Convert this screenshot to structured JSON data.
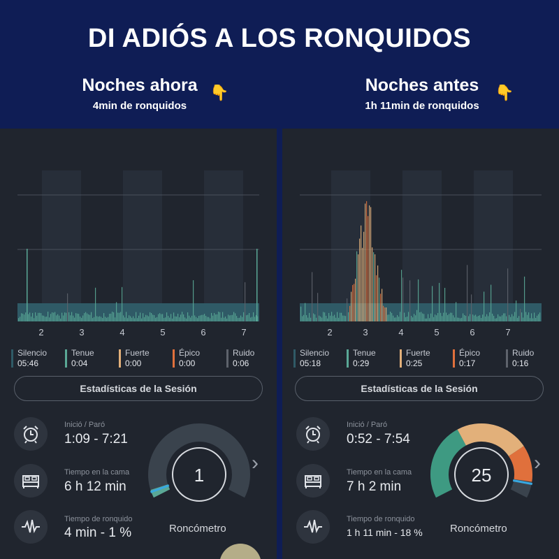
{
  "header": {
    "title": "DI ADIÓS A LOS RONQUIDOS",
    "left_heading": "Noches ahora",
    "left_subheading": "4min de ronquidos",
    "right_heading": "Noches antes",
    "right_subheading": "1h 11min de ronquidos",
    "hand_glyph": "👇"
  },
  "colors": {
    "silencio": "#2f5a66",
    "tenue": "#5aa896",
    "fuerte": "#e2b07a",
    "epico": "#e0703c",
    "ruido": "#5e636c"
  },
  "left": {
    "ticks": [
      "2",
      "3",
      "4",
      "5",
      "6",
      "7"
    ],
    "legend": [
      {
        "name": "Silencio",
        "value": "05:46"
      },
      {
        "name": "Tenue",
        "value": "0:04"
      },
      {
        "name": "Fuerte",
        "value": "0:00"
      },
      {
        "name": "Épico",
        "value": "0:00"
      },
      {
        "name": "Ruido",
        "value": "0:06"
      }
    ],
    "stats_button": "Estadísticas de la Sesión",
    "start_stop_label": "Inició / Paró",
    "start_stop_value": "1:09 - 7:21",
    "bed_label": "Tiempo en la cama",
    "bed_value": "6 h 12 min",
    "snore_label": "Tiempo de ronquido",
    "snore_value": "4 min - 1 %",
    "meter_value": "1",
    "meter_label": "Roncómetro",
    "chevron": "›"
  },
  "right": {
    "ticks": [
      "2",
      "3",
      "4",
      "5",
      "6",
      "7"
    ],
    "legend": [
      {
        "name": "Silencio",
        "value": "05:18"
      },
      {
        "name": "Tenue",
        "value": "0:29"
      },
      {
        "name": "Fuerte",
        "value": "0:25"
      },
      {
        "name": "Épico",
        "value": "0:17"
      },
      {
        "name": "Ruido",
        "value": "0:16"
      }
    ],
    "stats_button": "Estadísticas de la Sesión",
    "start_stop_label": "Inició / Paró",
    "start_stop_value": "0:52 - 7:54",
    "bed_label": "Tiempo en la cama",
    "bed_value": "7 h 2 min",
    "snore_label": "Tiempo de ronquido",
    "snore_value": "1 h 11 min - 18 %",
    "meter_value": "25",
    "meter_label": "Roncómetro",
    "chevron": "›"
  }
}
